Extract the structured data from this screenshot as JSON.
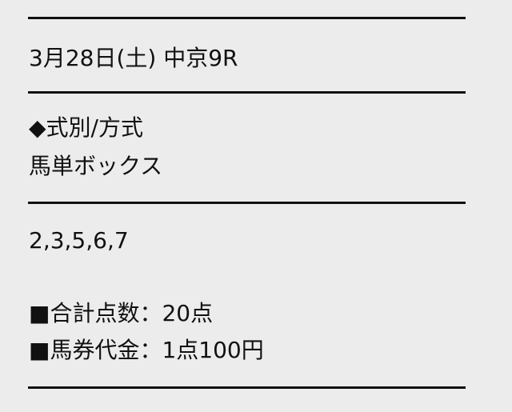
{
  "race": {
    "date_venue": "3月28日(土) 中京9R"
  },
  "bet_type": {
    "heading": "◆式別/方式",
    "value": "馬単ボックス"
  },
  "selection": {
    "numbers": "2,3,5,6,7"
  },
  "summary": {
    "total_points": "■合計点数：20点",
    "price": "■馬券代金：1点100円"
  }
}
